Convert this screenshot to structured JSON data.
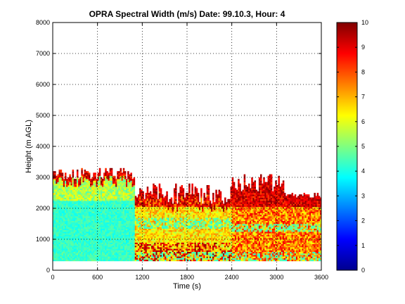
{
  "chart_data": {
    "type": "heatmap",
    "title": "OPRA Spectral Width (m/s)  Date: 99.10.3, Hour: 4",
    "xlabel": "Time (s)",
    "ylabel": "Height (m AGL)",
    "xlim": [
      0,
      3600
    ],
    "ylim": [
      0,
      8000
    ],
    "x_ticks": [
      0,
      600,
      1200,
      1800,
      2400,
      3000,
      3600
    ],
    "y_ticks": [
      0,
      1000,
      2000,
      3000,
      4000,
      5000,
      6000,
      7000,
      8000
    ],
    "grid": "dotted",
    "colormap": "jet",
    "colorbar": {
      "ticks": [
        0,
        1,
        2,
        3,
        4,
        5,
        6,
        7,
        8,
        9,
        10
      ],
      "range": [
        0,
        10
      ]
    },
    "data_extent": {
      "time_range_s": [
        0,
        3600
      ],
      "height_range_m": [
        300,
        3500
      ]
    },
    "data_description_regions": [
      {
        "time": [
          0,
          1100
        ],
        "height": [
          400,
          2800
        ],
        "value_approx": 4
      },
      {
        "time": [
          1100,
          2400
        ],
        "height": [
          300,
          1800
        ],
        "value_approx": 6
      },
      {
        "time": [
          2400,
          3600
        ],
        "height": [
          300,
          2900
        ],
        "value_approx": 7
      }
    ],
    "colors": {
      "low": "#00008f",
      "mid": "#00ffff",
      "high": "#800000"
    }
  }
}
